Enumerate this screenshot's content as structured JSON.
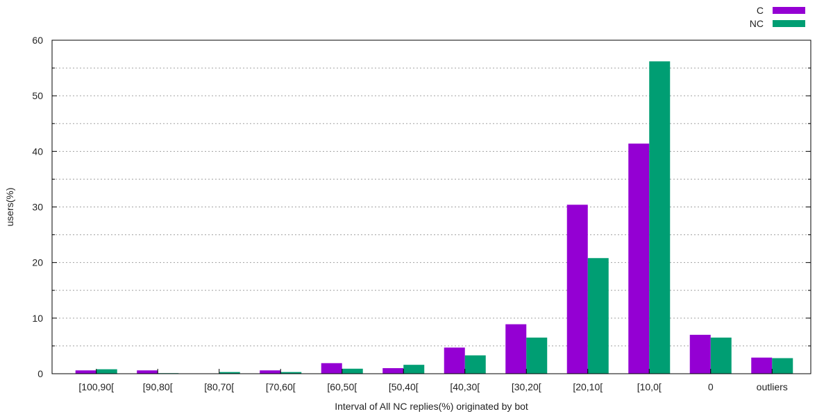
{
  "chart_data": {
    "type": "bar",
    "title": "",
    "xlabel": "Interval of All NC replies(%) originated by bot",
    "ylabel": "users(%)",
    "ylim": [
      0,
      60
    ],
    "yticks": [
      0,
      10,
      20,
      30,
      40,
      50,
      60
    ],
    "grid": true,
    "legend_position": "top-right",
    "categories": [
      "[100,90[",
      "[90,80[",
      "[80,70[",
      "[70,60[",
      "[60,50[",
      "[50,40[",
      "[40,30[",
      "[30,20[",
      "[20,10[",
      "[10,0[",
      "0",
      "outliers"
    ],
    "series": [
      {
        "name": "C",
        "color": "#9400d3",
        "values": [
          0.6,
          0.6,
          0.0,
          0.6,
          1.9,
          1.0,
          4.7,
          8.9,
          30.4,
          41.4,
          7.0,
          2.9
        ]
      },
      {
        "name": "NC",
        "color": "#009e73",
        "values": [
          0.8,
          0.1,
          0.3,
          0.3,
          0.9,
          1.6,
          3.3,
          6.5,
          20.8,
          56.2,
          6.5,
          2.8
        ]
      }
    ]
  }
}
